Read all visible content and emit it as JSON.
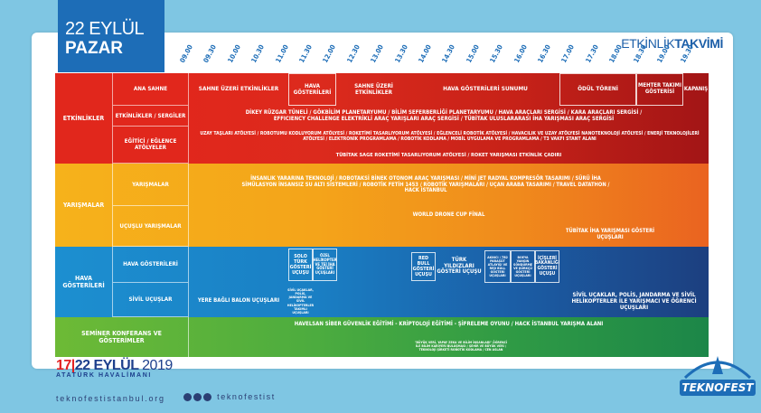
{
  "header": {
    "day": "22 EYLÜL",
    "weekday": "PAZAR",
    "title_light": "ETKİNLİK",
    "title_bold": "TAKVİMİ"
  },
  "times": [
    "09.00",
    "09.30",
    "10.00",
    "10.30",
    "11.00",
    "11.30",
    "12.00",
    "12.30",
    "13.00",
    "13.30",
    "14.00",
    "14.30",
    "15.00",
    "15.30",
    "16.00",
    "16.30",
    "17.00",
    "17.30",
    "18.00",
    "18.30",
    "19.00",
    "19.30"
  ],
  "sections": {
    "etkinlikler": {
      "label": "ETKİNLİKLER",
      "rows": [
        "ANA SAHNE",
        "ETKİNLİKLER / SERGİLER",
        "EĞİTİCİ / EĞLENCE ATÖLYELER"
      ]
    },
    "yarismalar": {
      "label": "YARIŞMALAR",
      "rows": [
        "YARIŞMALAR",
        "UÇUŞLU YARIŞMALAR"
      ]
    },
    "hava": {
      "label": "HAVA GÖSTERİLERİ",
      "rows": [
        "HAVA GÖSTERİLERİ",
        "SİVİL UÇUŞLAR"
      ]
    },
    "seminer": {
      "label": "SEMİNER KONFERANS VE GÖSTERİMLER"
    }
  },
  "events": {
    "ana_1": "SAHNE ÜZERİ ETKİNLİKLER",
    "ana_2": "HAVA GÖSTERİLERİ",
    "ana_3": "SAHNE ÜZERİ ETKİNLİKLER",
    "ana_4": "HAVA GÖSTERİLERİ SUNUMU",
    "ana_5": "ÖDÜL TÖRENİ",
    "ana_6": "MEHTER TAKIMI GÖSTERİSİ",
    "ana_7": "KAPANIŞ",
    "sergi": "DİKEY RÜZGAR TÜNELİ / GÖKBİLİM PLANETARYUMU / BİLİM SEFERBERLİĞİ PLANETARYUMU / HAVA ARAÇLARI SERGİSİ / KARA ARAÇLARI SERGİSİ / EFFICIENCY CHALLENGE ELEKTRİKLİ ARAÇ YARIŞLARI ARAÇ SERGİSİ / TÜBİTAK ULUSLARARASI İHA YARIŞMASI ARAÇ SERGİSİ",
    "atolye_1": "UZAY TAŞLARI ATÖLYESİ / ROBOTUMU KODLUYORUM ATÖLYESİ / ROKETİMİ TASARLIYORUM ATÖLYESİ / EĞLENCELİ ROBOTİK ATÖLYESİ / HAVACILIK VE UZAY ATÖLYESİ NANOTEKNOLOJİ ATÖLYESİ / ENERJİ TEKNOLOJİLERİ ATÖLYESİ / ELEKTRONİK PROGRAMLAMA / ROBOTİK KODLAMA / MOBİL UYGULAMA VE PROGRAMLAMA / T3 VAKFI STANT ALANI",
    "atolye_2": "TÜBİTAK SAGE ROKETİMİ TASARLIYORUM ATÖLYESİ / ROKET YARIŞMASI ETKİNLİK ÇADIRI",
    "yarisma": "İNSANLIK YARARINA TEKNOLOJİ / ROBOTAKSİ BİNEK OTONOM ARAÇ YARIŞMASI / MİNİ JET RADYAL KOMPRESÖR TASARIMI / SÜRÜ İHA SİMÜLASYON İNSANSIZ SU ALTI SİSTEMLERİ / ROBOTİK FETİH 1453 / ROBOTİK YARIŞMALARI / UÇAN ARABA TASARIMI / TRAVEL DATATHON / HACK İSTANBUL",
    "ucuslu_1": "WORLD DRONE CUP FİNAL",
    "ucuslu_2": "TÜBİTAK İHA YARIŞMASI GÖSTERİ UÇUŞLARI",
    "hava_1": "SOLO TÜRK GÖSTERİ UÇUŞU",
    "hava_2": "ÖZEL HELİKOPTER VE TEİ İHA GÖSTERİ UÇUŞLARI",
    "hava_3": "RED BULL GÖSTERİ UÇUŞU",
    "hava_4": "TÜRK YILDIZLARI GÖSTERİ UÇUŞU",
    "hava_5": "AKINCI / TB2 PARAŞÜT ATLAYIŞI VE RED BULL GÖSTERİ UÇUŞLARI",
    "hava_6": "BOEYA YANGIN SÖNDÜRME VE KÜRKÇÜ GÖSTERİ UÇUŞLARI",
    "hava_7": "İÇİŞLERİ BAKANLIĞI GÖSTERİ UÇUŞU",
    "sivil_1": "YERE BAĞLI BALON UÇUŞLARI",
    "sivil_2": "SİVİL UÇAKLAR, POLİS, JANDARMA VE SİVİL HELİKOPTERLER TAKIMLI UÇUŞLARI",
    "sivil_3": "SİVİL UÇAKLAR, POLİS, JANDARMA VE SİVİL HELİKOPTERLER İLE YARIŞMACI VE ÖĞRENCİ UÇUŞLARI",
    "seminer_1": "HAVELSAN SİBER GÜVENLİK EĞİTİMİ - KRİPTOLOJİ EĞİTİMİ - ŞİFRELEME OYUNU / HACK İSTANBUL YARIŞMA ALANI",
    "seminer_2": "\"BÜYÜK VERİ, YAPAY ZEKA VE BİLİM İNSANLARI\" ÖĞRENCİ İLE BİLİM KARİYERİ BULUŞMASI / ŞEHİR VE BÜYÜK VERİ / TEKNOLOJİ ŞİRKETİ ROBOTİK KODLAMA / CEN ASLAN"
  },
  "footer": {
    "d1": "17",
    "sep": "|",
    "d2": "22",
    "month": "EYLÜL",
    "year": "2019",
    "place": "ATATÜRK HAVALİMANI",
    "site": "teknofestistanbul.org",
    "handle": "teknofestist",
    "logo": "TEKNOFEST"
  },
  "colors": {
    "red": "#d7261e",
    "orange": "#f6a81b",
    "blue": "#1976c0",
    "green": "#43a047"
  }
}
